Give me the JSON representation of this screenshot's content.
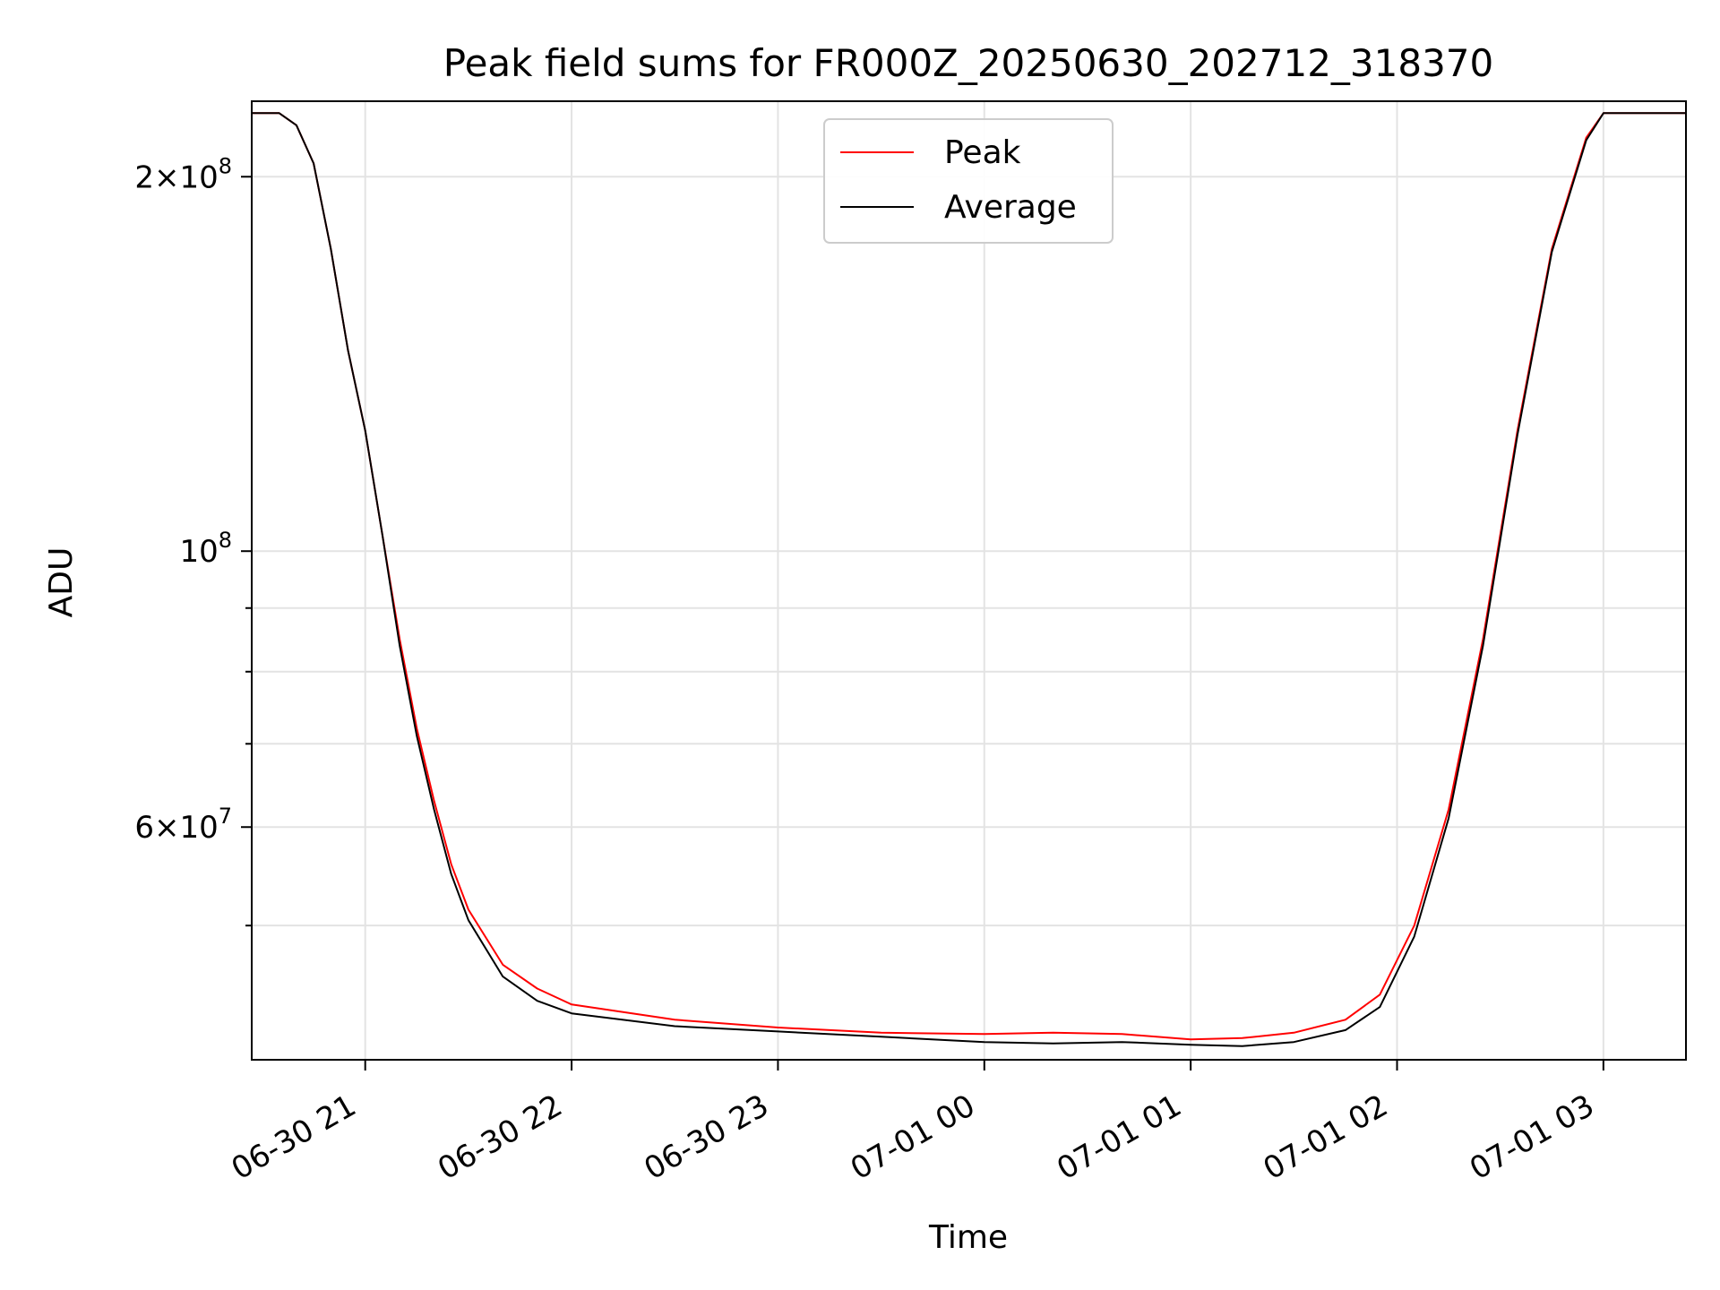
{
  "chart_data": {
    "type": "line",
    "title": "Peak field sums for FR000Z_20250630_202712_318370",
    "xlabel": "Time",
    "ylabel": "ADU",
    "x_range": [
      "2025-06-30 20:27",
      "2025-07-01 03:24"
    ],
    "y_scale": "log",
    "ylim": [
      39000000,
      230000000
    ],
    "grid": true,
    "legend_position": "upper center",
    "x_ticks": [
      "06-30 21",
      "06-30 22",
      "06-30 23",
      "07-01 00",
      "07-01 01",
      "07-01 02",
      "07-01 03"
    ],
    "y_ticks": [
      {
        "value": 200000000,
        "mantissa": "2",
        "exponent": "8"
      },
      {
        "value": 100000000,
        "mantissa": "",
        "exponent": "8"
      },
      {
        "value": 60000000,
        "mantissa": "6",
        "exponent": "7"
      }
    ],
    "series": [
      {
        "name": "Peak",
        "color": "#ff0000",
        "x": [
          "2025-06-30 20:27",
          "2025-06-30 20:35",
          "2025-06-30 20:40",
          "2025-06-30 20:45",
          "2025-06-30 20:50",
          "2025-06-30 20:55",
          "2025-06-30 21:00",
          "2025-06-30 21:05",
          "2025-06-30 21:10",
          "2025-06-30 21:15",
          "2025-06-30 21:20",
          "2025-06-30 21:25",
          "2025-06-30 21:30",
          "2025-06-30 21:40",
          "2025-06-30 21:50",
          "2025-06-30 22:00",
          "2025-06-30 22:30",
          "2025-06-30 23:00",
          "2025-06-30 23:30",
          "2025-07-01 00:00",
          "2025-07-01 00:20",
          "2025-07-01 00:40",
          "2025-07-01 01:00",
          "2025-07-01 01:15",
          "2025-07-01 01:30",
          "2025-07-01 01:45",
          "2025-07-01 01:55",
          "2025-07-01 02:05",
          "2025-07-01 02:15",
          "2025-07-01 02:25",
          "2025-07-01 02:35",
          "2025-07-01 02:45",
          "2025-07-01 02:55",
          "2025-07-01 03:00",
          "2025-07-01 03:24"
        ],
        "y": [
          225000000,
          225000000,
          220000000,
          205000000,
          175000000,
          145000000,
          125000000,
          103000000,
          85000000,
          72000000,
          63000000,
          56000000,
          51500000,
          46500000,
          44500000,
          43200000,
          42000000,
          41400000,
          41000000,
          40900000,
          41000000,
          40900000,
          40500000,
          40600000,
          41000000,
          42000000,
          44000000,
          50000000,
          62000000,
          85000000,
          125000000,
          175000000,
          215000000,
          225000000,
          225000000
        ]
      },
      {
        "name": "Average",
        "color": "#000000",
        "x": [
          "2025-06-30 20:27",
          "2025-06-30 20:35",
          "2025-06-30 20:40",
          "2025-06-30 20:45",
          "2025-06-30 20:50",
          "2025-06-30 20:55",
          "2025-06-30 21:00",
          "2025-06-30 21:05",
          "2025-06-30 21:10",
          "2025-06-30 21:15",
          "2025-06-30 21:20",
          "2025-06-30 21:25",
          "2025-06-30 21:30",
          "2025-06-30 21:40",
          "2025-06-30 21:50",
          "2025-06-30 22:00",
          "2025-06-30 22:30",
          "2025-06-30 23:00",
          "2025-06-30 23:30",
          "2025-07-01 00:00",
          "2025-07-01 00:20",
          "2025-07-01 00:40",
          "2025-07-01 01:00",
          "2025-07-01 01:15",
          "2025-07-01 01:30",
          "2025-07-01 01:45",
          "2025-07-01 01:55",
          "2025-07-01 02:05",
          "2025-07-01 02:15",
          "2025-07-01 02:25",
          "2025-07-01 02:35",
          "2025-07-01 02:45",
          "2025-07-01 02:55",
          "2025-07-01 03:00",
          "2025-07-01 03:24"
        ],
        "y": [
          225000000,
          225000000,
          220000000,
          205000000,
          175000000,
          145000000,
          125000000,
          103000000,
          84000000,
          71000000,
          62000000,
          55000000,
          50500000,
          45500000,
          43500000,
          42500000,
          41500000,
          41100000,
          40700000,
          40300000,
          40200000,
          40300000,
          40100000,
          40000000,
          40300000,
          41200000,
          43000000,
          49000000,
          61000000,
          84000000,
          124000000,
          174000000,
          214000000,
          225000000,
          225000000
        ]
      }
    ]
  }
}
